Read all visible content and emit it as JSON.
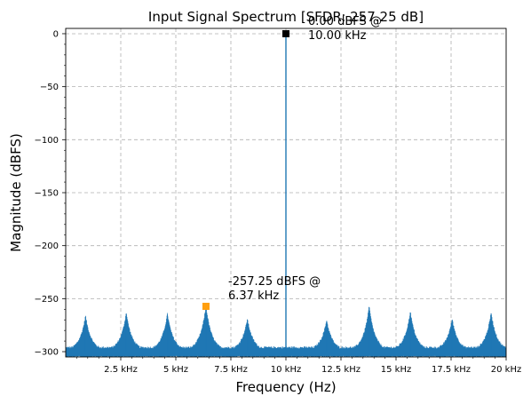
{
  "chart_data": {
    "type": "line",
    "title": "Input Signal Spectrum [SFDR: 257.25 dB]",
    "xlabel": "Frequency (Hz)",
    "ylabel": "Magnitude (dBFS)",
    "xlim": [
      0,
      20000
    ],
    "ylim": [
      -305,
      5
    ],
    "grid": true,
    "line_color": "#1f77b4",
    "x_ticks": [
      {
        "value": 2500,
        "label": "2.5 kHz"
      },
      {
        "value": 5000,
        "label": "5 kHz"
      },
      {
        "value": 7500,
        "label": "7.5 kHz"
      },
      {
        "value": 10000,
        "label": "10 kHz"
      },
      {
        "value": 12500,
        "label": "12.5 kHz"
      },
      {
        "value": 15000,
        "label": "15 kHz"
      },
      {
        "value": 17500,
        "label": "17.5 kHz"
      },
      {
        "value": 20000,
        "label": "20 kHz"
      }
    ],
    "y_ticks": [
      {
        "value": 0,
        "label": "0"
      },
      {
        "value": -50,
        "label": "−50"
      },
      {
        "value": -100,
        "label": "−100"
      },
      {
        "value": -150,
        "label": "−150"
      },
      {
        "value": -200,
        "label": "−200"
      },
      {
        "value": -250,
        "label": "−250"
      },
      {
        "value": -300,
        "label": "−300"
      }
    ],
    "noise_floor": -300,
    "fundamental": {
      "frequency": 10000,
      "magnitude": 0
    },
    "spurs": [
      {
        "frequency": 900,
        "magnitude": -267
      },
      {
        "frequency": 2750,
        "magnitude": -264
      },
      {
        "frequency": 4620,
        "magnitude": -265
      },
      {
        "frequency": 6370,
        "magnitude": -257.25
      },
      {
        "frequency": 8250,
        "magnitude": -270
      },
      {
        "frequency": 11850,
        "magnitude": -271
      },
      {
        "frequency": 13780,
        "magnitude": -258
      },
      {
        "frequency": 15650,
        "magnitude": -263
      },
      {
        "frequency": 17550,
        "magnitude": -270
      },
      {
        "frequency": 19320,
        "magnitude": -264
      }
    ],
    "markers": [
      {
        "name": "fundamental-marker",
        "frequency": 10000,
        "magnitude": 0,
        "color": "#000000",
        "label_line1": "0.00 dBFS @",
        "label_line2": "10.00 kHz"
      },
      {
        "name": "max-spur-marker",
        "frequency": 6370,
        "magnitude": -257.25,
        "color": "#ff9f0f",
        "label_line1": "-257.25 dBFS @",
        "label_line2": "6.37 kHz"
      }
    ]
  }
}
